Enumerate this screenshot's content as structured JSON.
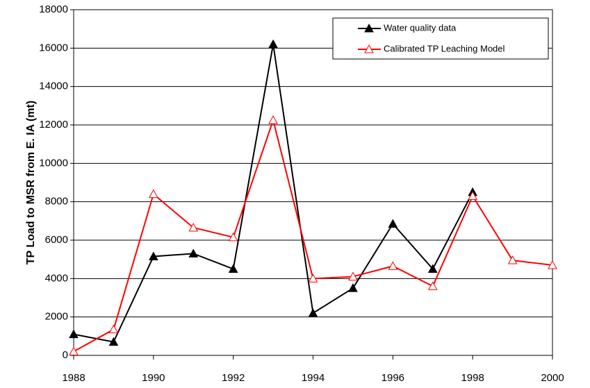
{
  "chart_data": {
    "type": "line",
    "ylabel": "TP Load to MSR from E. IA (mt)",
    "x": [
      1988,
      1989,
      1990,
      1991,
      1992,
      1993,
      1994,
      1995,
      1996,
      1997,
      1998,
      1999,
      2000
    ],
    "xlim": [
      1988,
      2000
    ],
    "xticks": [
      1988,
      1990,
      1992,
      1994,
      1996,
      1998,
      2000
    ],
    "ylim": [
      0,
      18000
    ],
    "yticks": [
      0,
      2000,
      4000,
      6000,
      8000,
      10000,
      12000,
      14000,
      16000,
      18000
    ],
    "grid": true,
    "legend": "upper right",
    "series": [
      {
        "name": "Water quality data",
        "color": "#000000",
        "marker_fill": "#000000",
        "values": [
          1100,
          700,
          5150,
          5300,
          4500,
          16200,
          2200,
          3500,
          6850,
          4500,
          8500,
          null,
          null
        ]
      },
      {
        "name": "Calibrated TP Leaching Model",
        "color": "#ff0000",
        "marker_fill": "#ffffff",
        "values": [
          200,
          1350,
          8400,
          6650,
          6150,
          12250,
          4000,
          4100,
          4650,
          3600,
          8300,
          4950,
          4700
        ]
      }
    ]
  }
}
